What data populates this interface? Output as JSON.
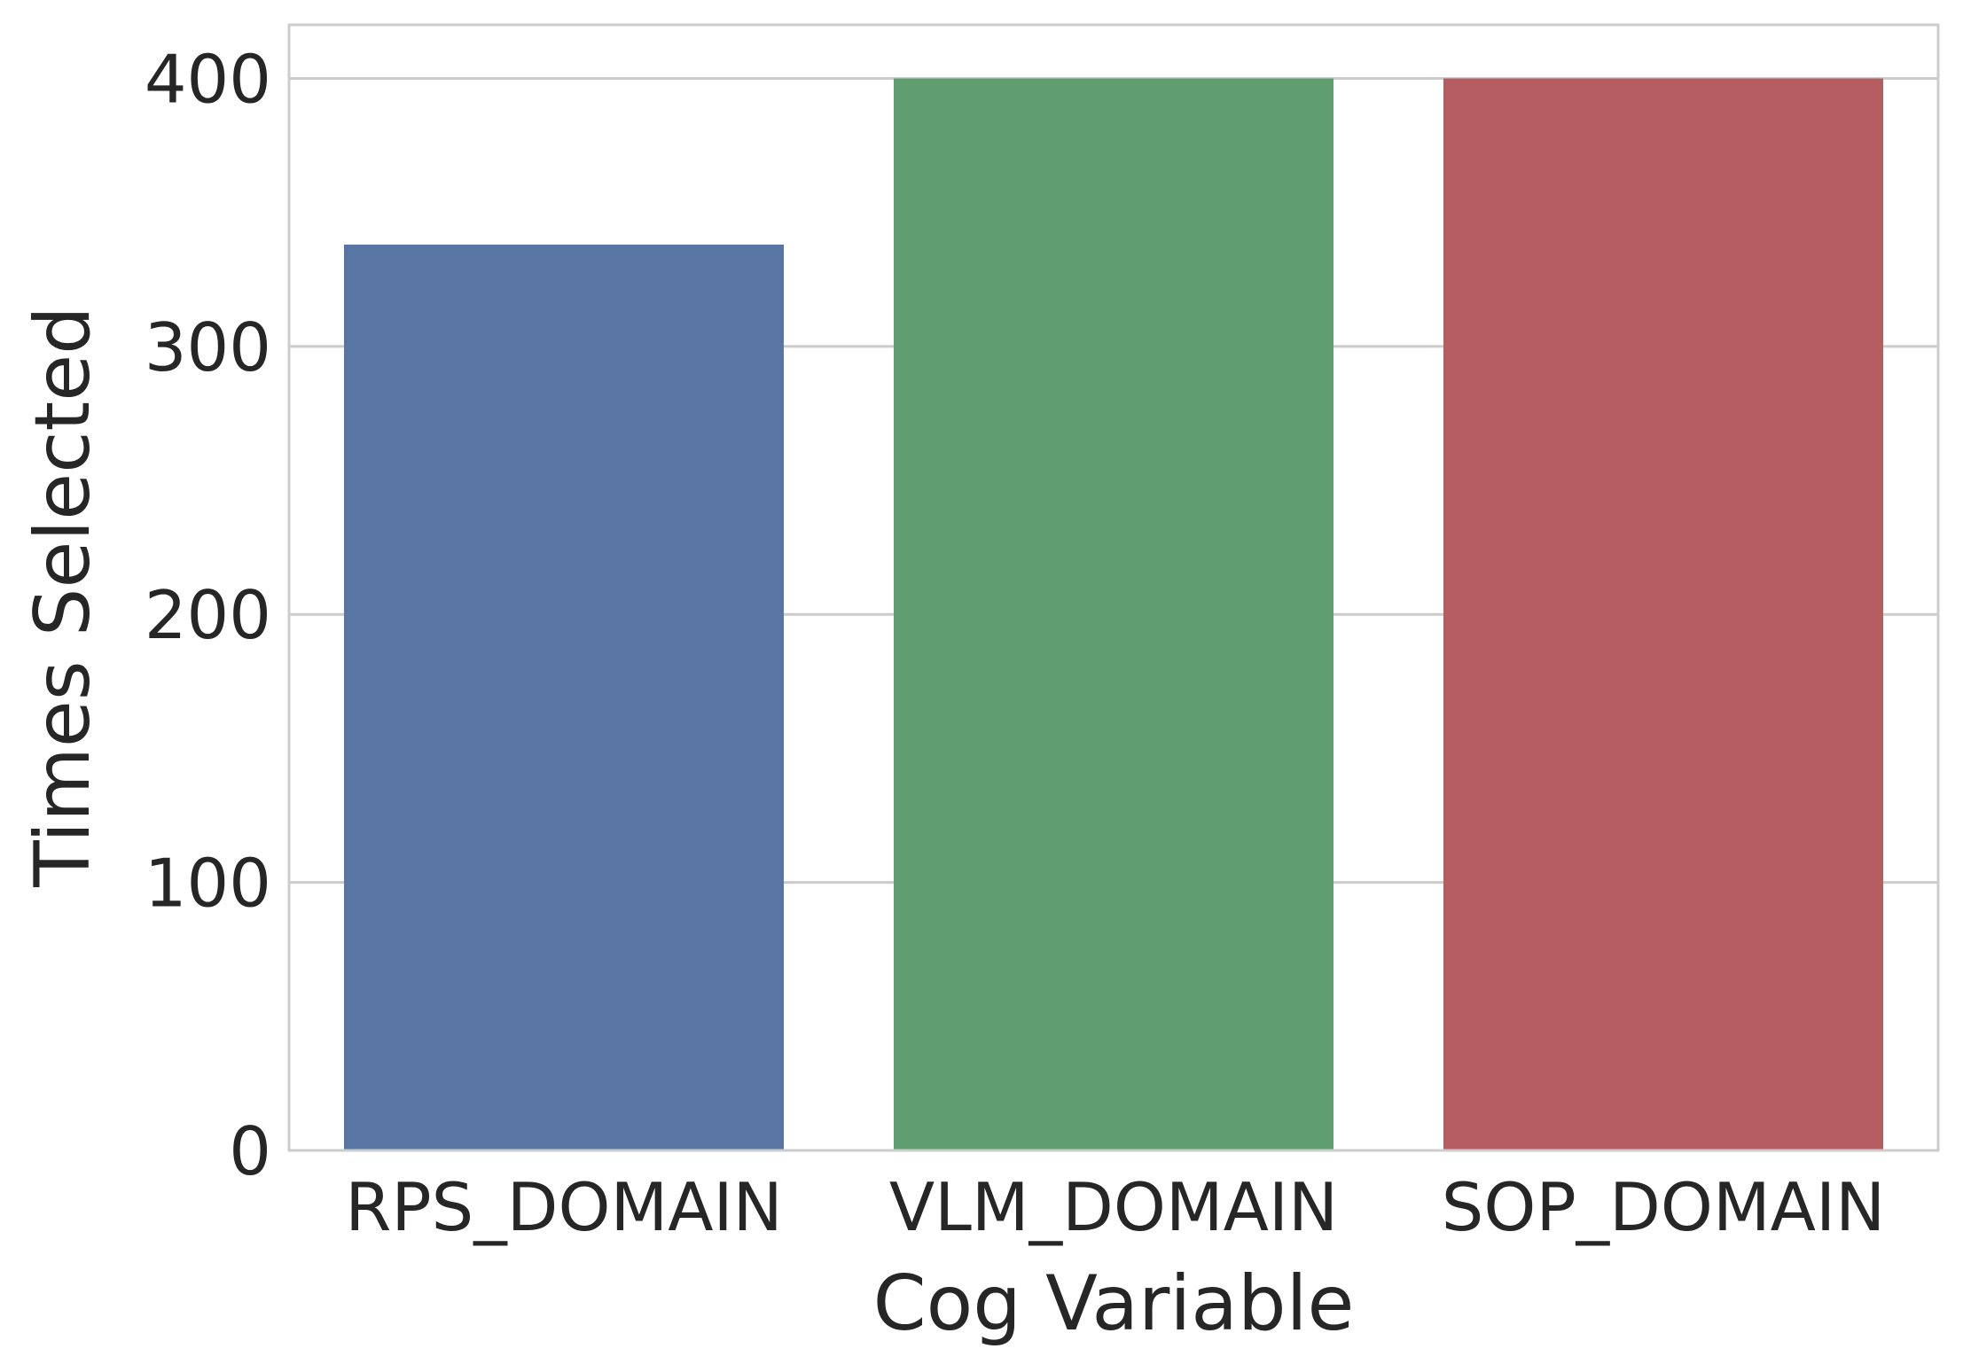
{
  "chart_data": {
    "type": "bar",
    "title": "",
    "xlabel": "Cog Variable",
    "ylabel": "Times Selected",
    "categories": [
      "RPS_DOMAIN",
      "VLM_DOMAIN",
      "SOP_DOMAIN"
    ],
    "values": [
      338,
      400,
      400
    ],
    "colors": [
      "#5975a4",
      "#5f9e6e",
      "#b55d60"
    ],
    "ylim": [
      0,
      420
    ],
    "yticks": [
      0,
      100,
      200,
      300,
      400
    ],
    "grid": "horizontal",
    "legend": "none"
  },
  "style": {
    "grid_color": "#cccccc",
    "spine_color": "#cccccc",
    "text_color": "#262626",
    "background": "#ffffff"
  }
}
